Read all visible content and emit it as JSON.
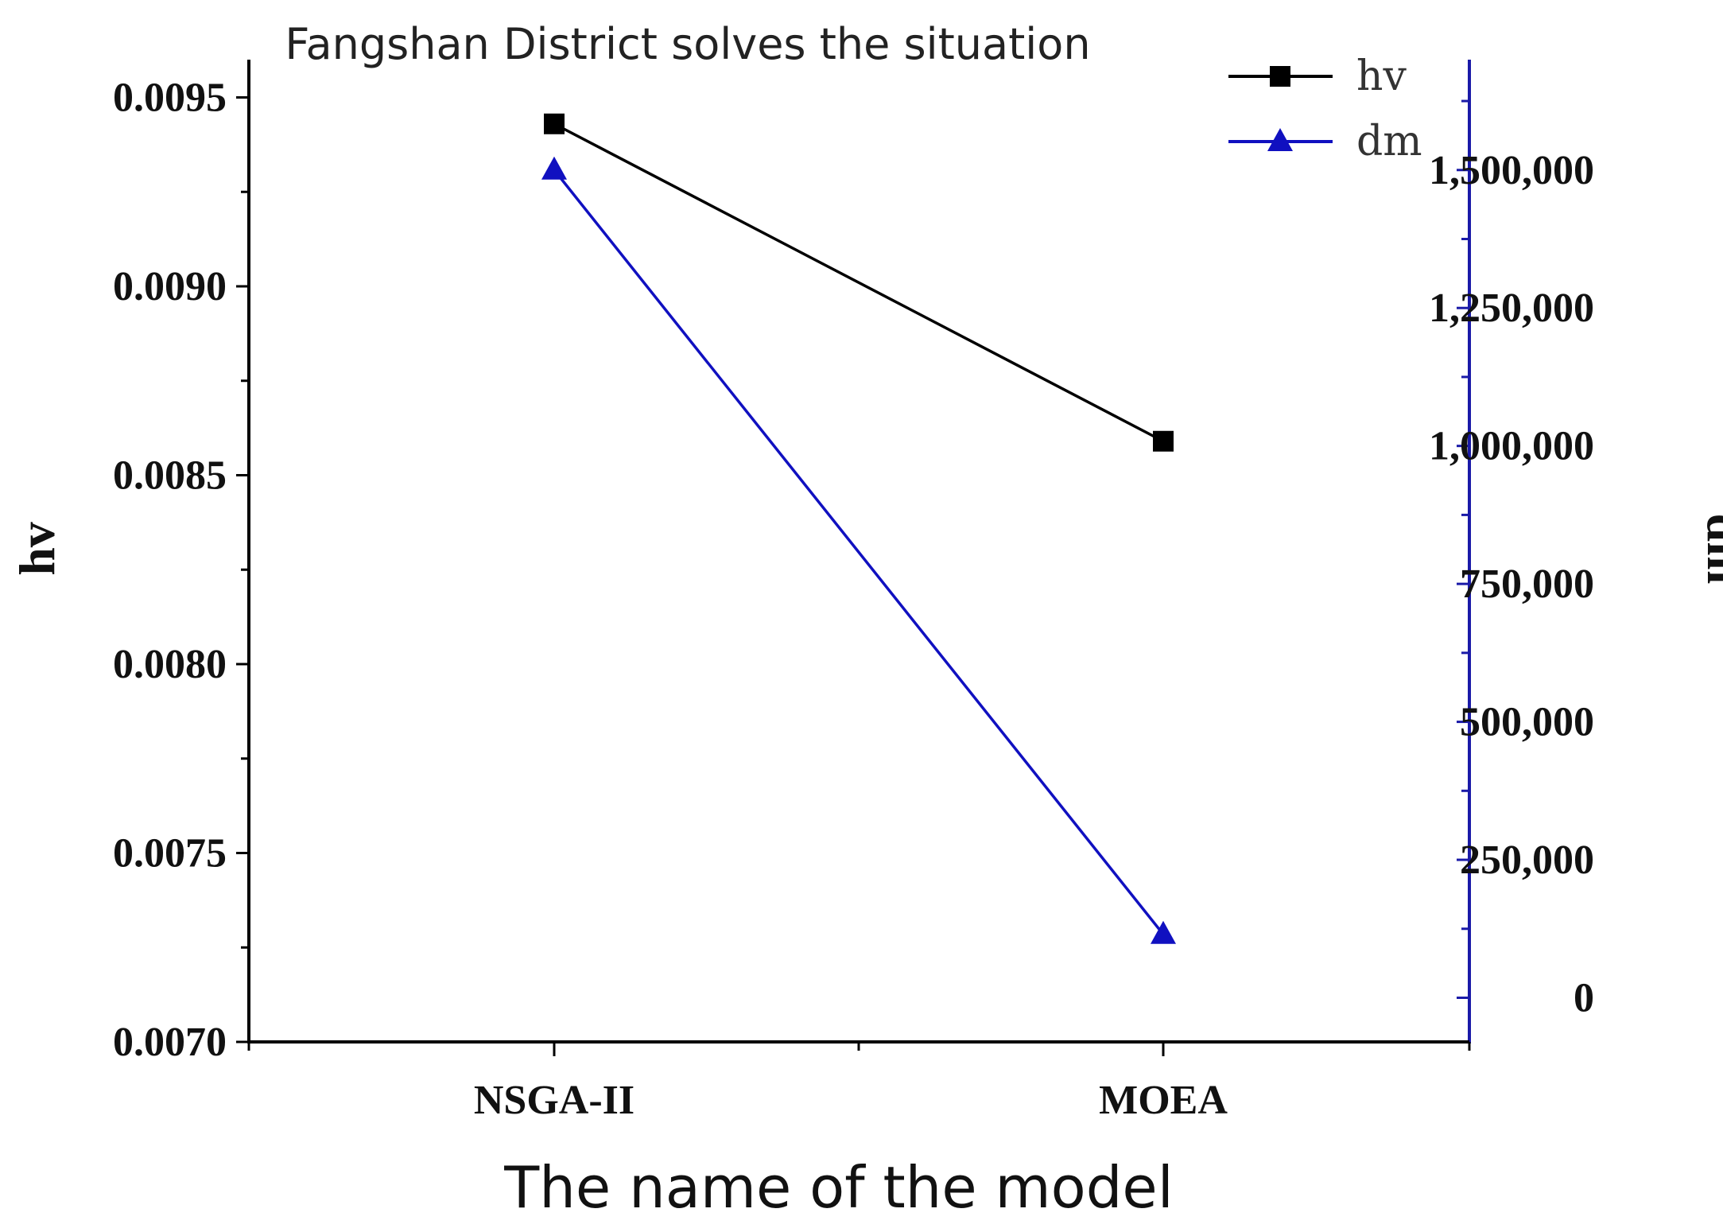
{
  "chart_data": {
    "type": "line",
    "title": "Fangshan District solves the situation",
    "xlabel": "The name of the model",
    "categories": [
      "NSGA-II",
      "MOEA"
    ],
    "y_left": {
      "label": "hv",
      "range": [
        0.007,
        0.0096
      ],
      "ticks": [
        "0.0070",
        "0.0075",
        "0.0080",
        "0.0085",
        "0.0090",
        "0.0095"
      ],
      "tick_values": [
        0.007,
        0.0075,
        0.008,
        0.0085,
        0.009,
        0.0095
      ],
      "color": "#000000"
    },
    "y_right": {
      "label": "dm",
      "range": [
        -80000,
        1700000
      ],
      "ticks": [
        "0",
        "250,000",
        "500,000",
        "750,000",
        "1,000,000",
        "1,250,000",
        "1,500,000"
      ],
      "tick_values": [
        0,
        250000,
        500000,
        750000,
        1000000,
        1250000,
        1500000
      ],
      "color": "#1a1aa8"
    },
    "series": [
      {
        "name": "hv",
        "axis": "left",
        "values": [
          0.00943,
          0.00859
        ],
        "color": "#000000",
        "marker": "square"
      },
      {
        "name": "dm",
        "axis": "right",
        "values": [
          1500000,
          115000
        ],
        "color": "#1010c0",
        "marker": "triangle"
      }
    ],
    "legend": {
      "position": "top-right"
    },
    "grid": false
  }
}
